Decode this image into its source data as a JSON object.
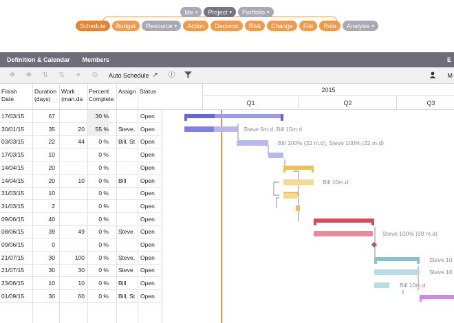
{
  "nav": {
    "row1": [
      {
        "label": "Me",
        "style": "gray",
        "caret": true
      },
      {
        "label": "Project",
        "style": "dark",
        "caret": true
      },
      {
        "label": "Portfolio",
        "style": "gray",
        "caret": true
      }
    ],
    "row2": [
      {
        "label": "Schedule",
        "style": "dark-orange",
        "caret": false
      },
      {
        "label": "Budget",
        "style": "orange",
        "caret": false
      },
      {
        "label": "Resource",
        "style": "gray",
        "caret": true
      },
      {
        "label": "Action",
        "style": "orange",
        "caret": false
      },
      {
        "label": "Decision",
        "style": "orange",
        "caret": false
      },
      {
        "label": "Risk",
        "style": "orange",
        "caret": false
      },
      {
        "label": "Change",
        "style": "orange",
        "caret": false
      },
      {
        "label": "File",
        "style": "orange",
        "caret": false
      },
      {
        "label": "Role",
        "style": "orange",
        "caret": false
      },
      {
        "label": "Analysis",
        "style": "gray",
        "caret": true
      }
    ]
  },
  "tabs": {
    "definition": "Definition & Calendar",
    "members": "Members",
    "edge": "E"
  },
  "toolbar": {
    "auto_schedule": "Auto Schedule",
    "right_label": "M"
  },
  "grid": {
    "headers": {
      "finish": [
        "Finish",
        "Date"
      ],
      "duration": [
        "Duration",
        "(days)"
      ],
      "work": [
        "Work",
        "(man.da"
      ],
      "percent": [
        "Percent",
        "Complete"
      ],
      "assigned": [
        "Assign",
        ""
      ],
      "status": [
        "Status",
        ""
      ]
    },
    "rows": [
      {
        "finish": "17/03/15",
        "duration": "67",
        "work": "",
        "percent": "30 %",
        "assigned": "",
        "status": "Open"
      },
      {
        "finish": "30/01/15",
        "duration": "35",
        "work": "20",
        "percent": "55 %",
        "assigned": "Steve,",
        "status": "Open"
      },
      {
        "finish": "03/03/15",
        "duration": "22",
        "work": "44",
        "percent": "0 %",
        "assigned": "Bill, St",
        "status": "Open"
      },
      {
        "finish": "17/03/15",
        "duration": "10",
        "work": "",
        "percent": "0 %",
        "assigned": "",
        "status": "Open"
      },
      {
        "finish": "14/04/15",
        "duration": "20",
        "work": "",
        "percent": "0 %",
        "assigned": "",
        "status": "Open"
      },
      {
        "finish": "14/04/15",
        "duration": "20",
        "work": "10",
        "percent": "0 %",
        "assigned": "Bill",
        "status": "Open"
      },
      {
        "finish": "31/03/15",
        "duration": "10",
        "work": "",
        "percent": "0 %",
        "assigned": "",
        "status": "Open"
      },
      {
        "finish": "31/03/15",
        "duration": "2",
        "work": "",
        "percent": "0 %",
        "assigned": "",
        "status": "Open"
      },
      {
        "finish": "09/06/15",
        "duration": "40",
        "work": "",
        "percent": "0 %",
        "assigned": "",
        "status": "Open"
      },
      {
        "finish": "08/06/15",
        "duration": "39",
        "work": "49",
        "percent": "0 %",
        "assigned": "Steve",
        "status": "Open"
      },
      {
        "finish": "09/06/15",
        "duration": "0",
        "work": "",
        "percent": "0 %",
        "assigned": "",
        "status": "Open"
      },
      {
        "finish": "21/07/15",
        "duration": "30",
        "work": "100",
        "percent": "0 %",
        "assigned": "Steve,",
        "status": "Open"
      },
      {
        "finish": "21/07/15",
        "duration": "30",
        "work": "30",
        "percent": "0 %",
        "assigned": "Steve",
        "status": "Open"
      },
      {
        "finish": "23/06/15",
        "duration": "10",
        "work": "10",
        "percent": "0 %",
        "assigned": "Bill",
        "status": "Open"
      },
      {
        "finish": "01/09/15",
        "duration": "30",
        "work": "60",
        "percent": "0 %",
        "assigned": "Bill, St",
        "status": "Open"
      }
    ]
  },
  "timeline": {
    "year": "2015",
    "quarters": [
      "Q1",
      "Q2",
      "Q3"
    ],
    "labels": [
      "Steve 5m.d, Bill 15m.d",
      "Bill 100% (22 m.d), Steve 100% (22 m.d)",
      "Bill 10m.d",
      "Steve 100% (39 m.d)",
      "Steve 10",
      "Steve 10",
      "Bill 10m.d"
    ]
  },
  "colors": {
    "blue": "#9a9be8",
    "blue_dark": "#6465d8",
    "yellow": "#f7da8e",
    "yellow_dark": "#f0bf4d",
    "red": "#ea8a97",
    "red_dark": "#d64a5e",
    "teal": "#b9dbe3",
    "teal_dark": "#8cc0cf",
    "purple": "#cf88ea",
    "today": "#f08a4b"
  }
}
